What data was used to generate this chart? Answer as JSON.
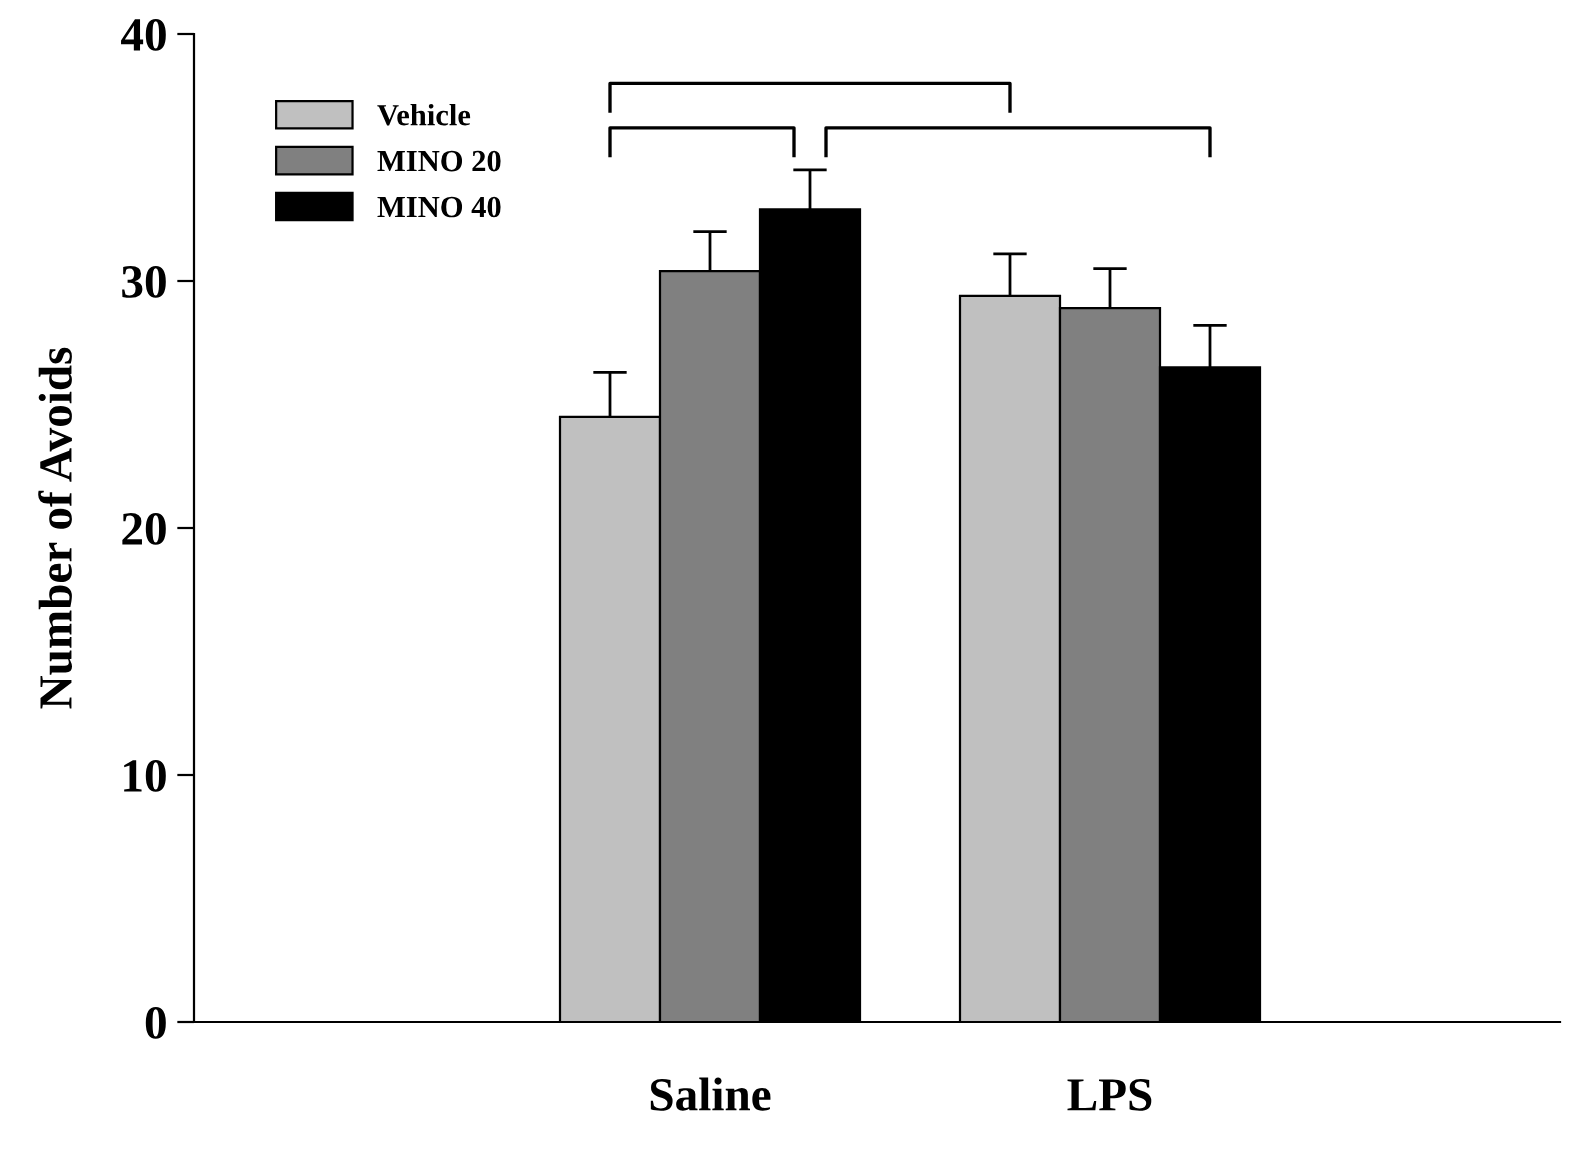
{
  "chart_data": {
    "type": "bar",
    "ylabel": "Number of Avoids",
    "categories": [
      "Saline",
      "LPS"
    ],
    "series": [
      {
        "name": "Vehicle",
        "color": "#c0c0c0",
        "values": [
          24.5,
          29.4
        ],
        "errors": [
          [
            24.5,
            26.3
          ],
          [
            29.4,
            31.1
          ]
        ]
      },
      {
        "name": "MINO 20",
        "color": "#808080",
        "values": [
          30.4,
          28.9
        ],
        "errors": [
          [
            30.4,
            32.0
          ],
          [
            28.9,
            30.5
          ]
        ]
      },
      {
        "name": "MINO 40",
        "color": "#000000",
        "values": [
          32.9,
          26.5
        ],
        "errors": [
          [
            32.9,
            34.5
          ],
          [
            26.5,
            28.2
          ]
        ]
      }
    ],
    "ylim": [
      0,
      40
    ],
    "yticks": [
      0,
      10,
      20,
      30,
      40
    ],
    "grid": false,
    "legend": "top left"
  }
}
